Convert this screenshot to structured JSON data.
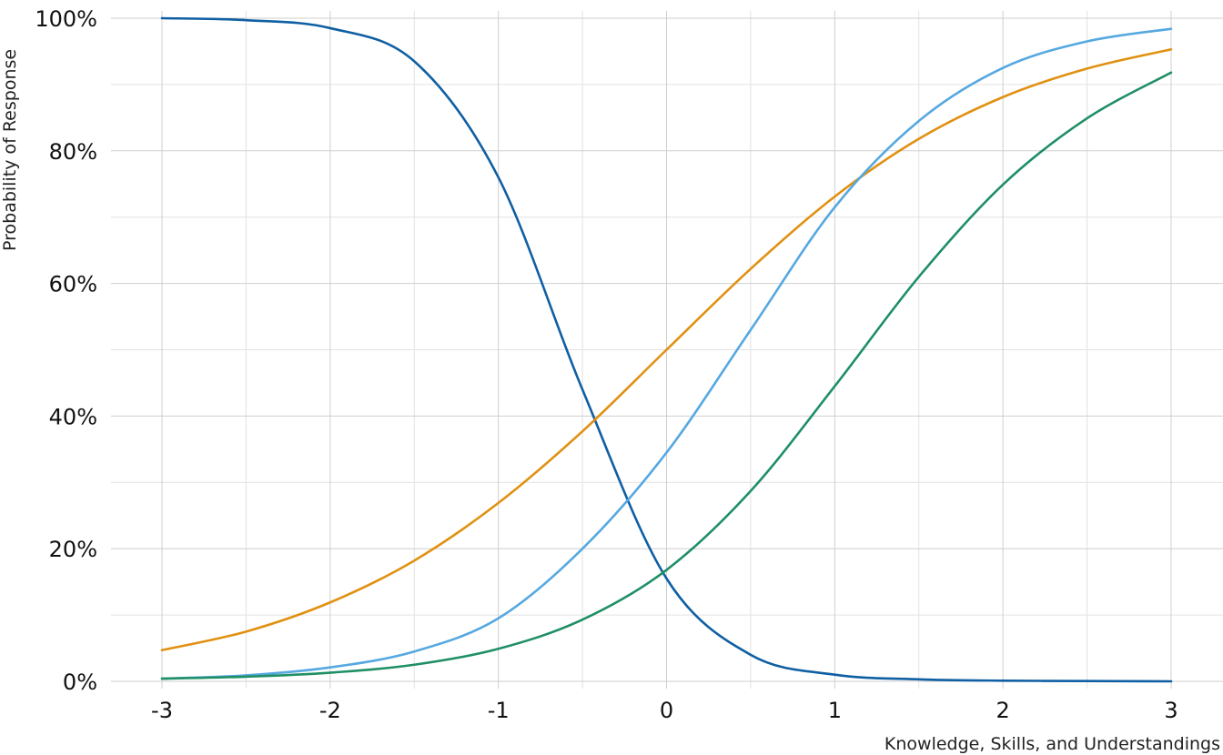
{
  "chart_data": {
    "type": "line",
    "xlabel": "Knowledge, Skills, and Understandings",
    "ylabel": "Probability of Response",
    "xlim": [
      -3,
      3
    ],
    "ylim": [
      0,
      1
    ],
    "x_ticks": [
      -3,
      -2,
      -1,
      0,
      1,
      2,
      3
    ],
    "x_tick_labels": [
      "-3",
      "-2",
      "-1",
      "0",
      "1",
      "2",
      "3"
    ],
    "y_ticks": [
      0,
      0.2,
      0.4,
      0.6,
      0.8,
      1.0
    ],
    "y_tick_labels": [
      "0%",
      "20%",
      "40%",
      "60%",
      "80%",
      "100%"
    ],
    "grid": true,
    "legend": "none",
    "x": [
      -3,
      -2.5,
      -2,
      -1.5,
      -1,
      -0.5,
      0,
      0.5,
      1,
      1.5,
      2,
      2.5,
      3
    ],
    "series": [
      {
        "color": "#0f5fa3",
        "values": [
          1.0,
          0.997,
          0.985,
          0.935,
          0.76,
          0.44,
          0.155,
          0.04,
          0.01,
          0.003,
          0.001,
          0.0005,
          0.0
        ]
      },
      {
        "color": "#e09112",
        "values": [
          0.047,
          0.075,
          0.119,
          0.182,
          0.269,
          0.377,
          0.5,
          0.622,
          0.731,
          0.818,
          0.881,
          0.924,
          0.953
        ]
      },
      {
        "color": "#56a8e0",
        "values": [
          0.004,
          0.009,
          0.021,
          0.045,
          0.095,
          0.2,
          0.345,
          0.53,
          0.715,
          0.845,
          0.925,
          0.965,
          0.984
        ]
      },
      {
        "color": "#1f8f65",
        "values": [
          0.004,
          0.007,
          0.013,
          0.025,
          0.049,
          0.093,
          0.168,
          0.287,
          0.445,
          0.61,
          0.749,
          0.849,
          0.918
        ]
      }
    ]
  }
}
